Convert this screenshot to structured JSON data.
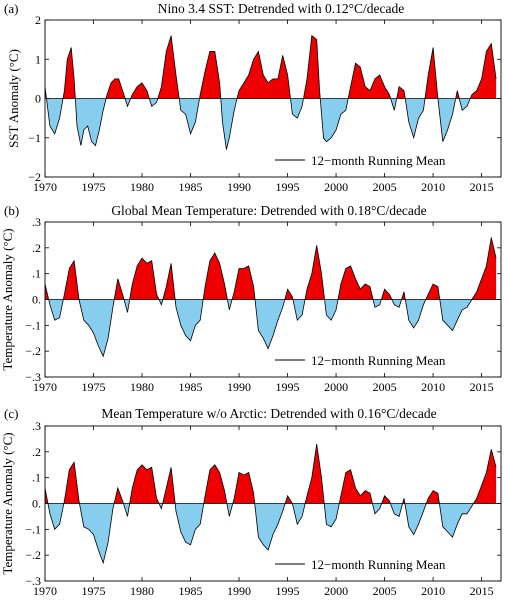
{
  "colors": {
    "positive": "#ee0000",
    "negative": "#87cdee",
    "line": "#000000"
  },
  "chart_data": [
    {
      "type": "area",
      "panel_label": "(a)",
      "title": "Nino 3.4 SST: Detrended with 0.12°C/decade",
      "ylabel": "SST Anomaly (°C)",
      "xlabel": "",
      "xlim": [
        1970,
        2017
      ],
      "ylim": [
        -2,
        2
      ],
      "yticks": [
        -2,
        -1,
        0,
        1,
        2
      ],
      "ytick_labels": [
        "−2",
        "−1",
        "0",
        "1",
        "2"
      ],
      "xticks": [
        1970,
        1975,
        1980,
        1985,
        1990,
        1995,
        2000,
        2005,
        2010,
        2015
      ],
      "legend": "12−month Running Mean",
      "legend_position": "bottom-right",
      "fill_positive": "red",
      "fill_negative": "lightblue",
      "series": [
        {
          "name": "12−month Running Mean",
          "x": [
            1970.0,
            1970.5,
            1971.0,
            1971.5,
            1972.0,
            1972.3,
            1972.7,
            1973.0,
            1973.3,
            1973.7,
            1974.0,
            1974.4,
            1974.8,
            1975.2,
            1975.6,
            1976.0,
            1976.4,
            1976.8,
            1977.2,
            1977.6,
            1978.0,
            1978.5,
            1979.0,
            1979.5,
            1980.0,
            1980.5,
            1981.0,
            1981.5,
            1982.0,
            1982.5,
            1983.0,
            1983.5,
            1984.0,
            1984.5,
            1985.0,
            1985.5,
            1986.0,
            1986.5,
            1987.0,
            1987.5,
            1988.0,
            1988.3,
            1988.7,
            1989.0,
            1989.5,
            1990.0,
            1990.5,
            1991.0,
            1991.5,
            1992.0,
            1992.5,
            1993.0,
            1993.5,
            1994.0,
            1994.5,
            1995.0,
            1995.5,
            1996.0,
            1996.5,
            1997.0,
            1997.5,
            1998.0,
            1998.3,
            1998.7,
            1999.0,
            1999.5,
            2000.0,
            2000.5,
            2001.0,
            2001.5,
            2002.0,
            2002.5,
            2003.0,
            2003.5,
            2004.0,
            2004.5,
            2005.0,
            2005.5,
            2006.0,
            2006.5,
            2007.0,
            2007.5,
            2008.0,
            2008.5,
            2009.0,
            2009.5,
            2010.0,
            2010.5,
            2011.0,
            2011.5,
            2012.0,
            2012.5,
            2013.0,
            2013.5,
            2014.0,
            2014.5,
            2015.0,
            2015.5,
            2016.0,
            2016.5
          ],
          "y": [
            0.3,
            -0.7,
            -0.9,
            -0.5,
            0.2,
            1.0,
            1.3,
            0.5,
            -0.7,
            -1.2,
            -0.8,
            -0.7,
            -1.1,
            -1.2,
            -0.8,
            -0.3,
            0.1,
            0.4,
            0.5,
            0.5,
            0.2,
            -0.2,
            0.1,
            0.3,
            0.4,
            0.2,
            -0.2,
            -0.1,
            0.3,
            1.2,
            1.6,
            0.6,
            -0.3,
            -0.4,
            -0.9,
            -0.6,
            0.1,
            0.7,
            1.2,
            1.2,
            0.4,
            -0.6,
            -1.3,
            -1.0,
            -0.3,
            0.2,
            0.4,
            0.6,
            1.0,
            1.2,
            0.6,
            0.4,
            0.5,
            0.5,
            1.1,
            0.6,
            -0.4,
            -0.5,
            -0.2,
            0.5,
            1.6,
            1.5,
            0.2,
            -1.0,
            -1.1,
            -1.0,
            -0.8,
            -0.4,
            -0.3,
            0.3,
            0.9,
            0.8,
            0.3,
            0.2,
            0.5,
            0.6,
            0.3,
            0.1,
            -0.3,
            0.3,
            0.2,
            -0.6,
            -1.0,
            -0.5,
            -0.3,
            0.6,
            1.3,
            0.0,
            -1.1,
            -0.8,
            -0.4,
            0.2,
            -0.3,
            -0.2,
            0.1,
            0.2,
            0.5,
            1.2,
            1.4,
            0.5
          ]
        }
      ]
    },
    {
      "type": "area",
      "panel_label": "(b)",
      "title": "Global Mean Temperature: Detrended with 0.18°C/decade",
      "ylabel": "Temperature Anomaly (°C)",
      "xlabel": "",
      "xlim": [
        1970,
        2017
      ],
      "ylim": [
        -0.3,
        0.3
      ],
      "yticks": [
        -0.3,
        -0.2,
        -0.1,
        0,
        0.1,
        0.2,
        0.3
      ],
      "ytick_labels": [
        "−.3",
        "−.2",
        "−.1",
        "0.",
        ".1",
        ".2",
        ".3"
      ],
      "xticks": [
        1970,
        1975,
        1980,
        1985,
        1990,
        1995,
        2000,
        2005,
        2010,
        2015
      ],
      "legend": "12−month Running Mean",
      "legend_position": "bottom-right",
      "fill_positive": "red",
      "fill_negative": "lightblue",
      "series": [
        {
          "name": "12−month Running Mean",
          "x": [
            1970.0,
            1970.5,
            1971.0,
            1971.5,
            1972.0,
            1972.5,
            1973.0,
            1973.5,
            1974.0,
            1974.5,
            1975.0,
            1975.5,
            1976.0,
            1976.5,
            1977.0,
            1977.5,
            1978.0,
            1978.5,
            1979.0,
            1979.5,
            1980.0,
            1980.5,
            1981.0,
            1981.5,
            1982.0,
            1982.5,
            1983.0,
            1983.5,
            1984.0,
            1984.5,
            1985.0,
            1985.5,
            1986.0,
            1986.5,
            1987.0,
            1987.5,
            1988.0,
            1988.5,
            1989.0,
            1989.5,
            1990.0,
            1990.5,
            1991.0,
            1991.5,
            1992.0,
            1992.5,
            1993.0,
            1993.5,
            1994.0,
            1994.5,
            1995.0,
            1995.5,
            1996.0,
            1996.5,
            1997.0,
            1997.5,
            1998.0,
            1998.5,
            1999.0,
            1999.5,
            2000.0,
            2000.5,
            2001.0,
            2001.5,
            2002.0,
            2002.5,
            2003.0,
            2003.5,
            2004.0,
            2004.5,
            2005.0,
            2005.5,
            2006.0,
            2006.5,
            2007.0,
            2007.5,
            2008.0,
            2008.5,
            2009.0,
            2009.5,
            2010.0,
            2010.5,
            2011.0,
            2011.5,
            2012.0,
            2012.5,
            2013.0,
            2013.5,
            2014.0,
            2014.5,
            2015.0,
            2015.5,
            2016.0,
            2016.5
          ],
          "y": [
            0.06,
            -0.02,
            -0.08,
            -0.07,
            0.02,
            0.12,
            0.15,
            0.0,
            -0.08,
            -0.1,
            -0.13,
            -0.18,
            -0.22,
            -0.15,
            -0.03,
            0.08,
            0.02,
            -0.05,
            0.06,
            0.13,
            0.16,
            0.14,
            0.15,
            0.02,
            -0.02,
            0.05,
            0.14,
            -0.03,
            -0.1,
            -0.14,
            -0.16,
            -0.1,
            -0.08,
            0.05,
            0.15,
            0.18,
            0.14,
            0.06,
            -0.04,
            0.03,
            0.12,
            0.12,
            0.13,
            0.05,
            -0.12,
            -0.15,
            -0.19,
            -0.14,
            -0.08,
            -0.03,
            0.04,
            0.01,
            -0.08,
            -0.06,
            0.04,
            0.1,
            0.21,
            0.1,
            -0.06,
            -0.08,
            -0.04,
            0.06,
            0.12,
            0.13,
            0.08,
            0.04,
            0.06,
            0.05,
            -0.03,
            -0.02,
            0.04,
            0.02,
            -0.02,
            -0.03,
            0.03,
            -0.08,
            -0.11,
            -0.08,
            -0.02,
            0.02,
            0.06,
            0.05,
            -0.08,
            -0.1,
            -0.12,
            -0.08,
            -0.04,
            -0.03,
            0.0,
            0.03,
            0.08,
            0.13,
            0.24,
            0.16
          ]
        }
      ]
    },
    {
      "type": "area",
      "panel_label": "(c)",
      "title": "Mean Temperature w/o Arctic: Detrended with 0.16°C/decade",
      "ylabel": "Temperature Anomaly (°C)",
      "xlabel": "",
      "xlim": [
        1970,
        2017
      ],
      "ylim": [
        -0.3,
        0.3
      ],
      "yticks": [
        -0.3,
        -0.2,
        -0.1,
        0,
        0.1,
        0.2,
        0.3
      ],
      "ytick_labels": [
        "−.3",
        "−.2",
        "−.1",
        "0.",
        ".1",
        ".2",
        ".3"
      ],
      "xticks": [
        1970,
        1975,
        1980,
        1985,
        1990,
        1995,
        2000,
        2005,
        2010,
        2015
      ],
      "legend": "12−month Running Mean",
      "legend_position": "bottom-right",
      "fill_positive": "red",
      "fill_negative": "lightblue",
      "series": [
        {
          "name": "12−month Running Mean",
          "x": [
            1970.0,
            1970.5,
            1971.0,
            1971.5,
            1972.0,
            1972.5,
            1973.0,
            1973.5,
            1974.0,
            1974.5,
            1975.0,
            1975.5,
            1976.0,
            1976.5,
            1977.0,
            1977.5,
            1978.0,
            1978.5,
            1979.0,
            1979.5,
            1980.0,
            1980.5,
            1981.0,
            1981.5,
            1982.0,
            1982.5,
            1983.0,
            1983.5,
            1984.0,
            1984.5,
            1985.0,
            1985.5,
            1986.0,
            1986.5,
            1987.0,
            1987.5,
            1988.0,
            1988.5,
            1989.0,
            1989.5,
            1990.0,
            1990.5,
            1991.0,
            1991.5,
            1992.0,
            1992.5,
            1993.0,
            1993.5,
            1994.0,
            1994.5,
            1995.0,
            1995.5,
            1996.0,
            1996.5,
            1997.0,
            1997.5,
            1998.0,
            1998.5,
            1999.0,
            1999.5,
            2000.0,
            2000.5,
            2001.0,
            2001.5,
            2002.0,
            2002.5,
            2003.0,
            2003.5,
            2004.0,
            2004.5,
            2005.0,
            2005.5,
            2006.0,
            2006.5,
            2007.0,
            2007.5,
            2008.0,
            2008.5,
            2009.0,
            2009.5,
            2010.0,
            2010.5,
            2011.0,
            2011.5,
            2012.0,
            2012.5,
            2013.0,
            2013.5,
            2014.0,
            2014.5,
            2015.0,
            2015.5,
            2016.0,
            2016.5
          ],
          "y": [
            0.06,
            -0.04,
            -0.1,
            -0.08,
            0.01,
            0.13,
            0.16,
            0.01,
            -0.09,
            -0.1,
            -0.12,
            -0.18,
            -0.23,
            -0.15,
            -0.02,
            0.06,
            0.01,
            -0.05,
            0.06,
            0.13,
            0.15,
            0.13,
            0.14,
            0.02,
            -0.02,
            0.06,
            0.14,
            -0.03,
            -0.11,
            -0.15,
            -0.16,
            -0.1,
            -0.08,
            0.03,
            0.13,
            0.15,
            0.12,
            0.05,
            -0.05,
            0.02,
            0.12,
            0.11,
            0.12,
            0.04,
            -0.13,
            -0.16,
            -0.18,
            -0.12,
            -0.08,
            -0.03,
            0.03,
            0.0,
            -0.08,
            -0.05,
            0.03,
            0.1,
            0.23,
            0.1,
            -0.08,
            -0.09,
            -0.06,
            0.03,
            0.12,
            0.13,
            0.06,
            0.03,
            0.05,
            0.04,
            -0.04,
            -0.02,
            0.03,
            0.01,
            -0.04,
            -0.05,
            0.02,
            -0.09,
            -0.12,
            -0.08,
            -0.03,
            0.02,
            0.05,
            0.04,
            -0.09,
            -0.11,
            -0.13,
            -0.08,
            -0.04,
            -0.04,
            -0.01,
            0.02,
            0.07,
            0.12,
            0.21,
            0.14
          ]
        }
      ]
    }
  ]
}
